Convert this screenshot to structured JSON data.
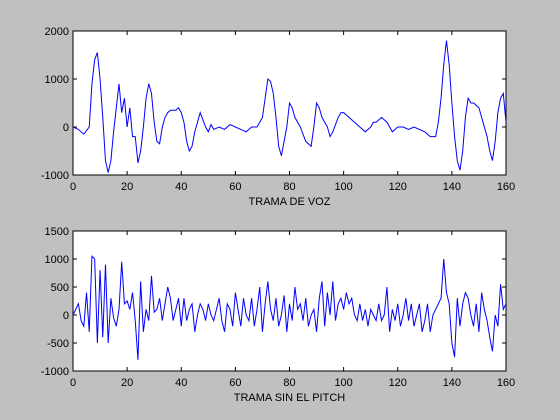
{
  "chart_data": [
    {
      "type": "line",
      "xlabel": "TRAMA DE VOZ",
      "color": "#0000ff",
      "x": [
        0,
        2,
        4,
        6,
        7,
        8,
        9,
        10,
        11,
        12,
        13,
        14,
        15,
        16,
        17,
        18,
        19,
        20,
        21,
        22,
        23,
        24,
        25,
        26,
        27,
        28,
        29,
        30,
        31,
        32,
        33,
        34,
        35,
        36,
        38,
        39,
        40,
        41,
        42,
        43,
        44,
        45,
        46,
        47,
        48,
        49,
        50,
        51,
        52,
        54,
        56,
        58,
        60,
        62,
        64,
        66,
        68,
        70,
        71,
        72,
        73,
        74,
        75,
        76,
        77,
        78,
        79,
        80,
        81,
        82,
        84,
        86,
        88,
        89,
        90,
        91,
        92,
        94,
        95,
        96,
        98,
        99,
        100,
        102,
        104,
        106,
        108,
        110,
        111,
        112,
        114,
        116,
        118,
        120,
        122,
        124,
        126,
        128,
        130,
        132,
        134,
        135,
        136,
        137,
        138,
        139,
        140,
        141,
        142,
        143,
        144,
        145,
        146,
        147,
        148,
        150,
        152,
        153,
        154,
        155,
        156,
        157,
        158,
        159,
        160
      ],
      "values": [
        0,
        -50,
        -150,
        0,
        900,
        1400,
        1550,
        1000,
        200,
        -700,
        -950,
        -700,
        -100,
        400,
        900,
        300,
        600,
        0,
        400,
        -200,
        -200,
        -750,
        -500,
        0,
        600,
        900,
        700,
        100,
        -300,
        -350,
        0,
        200,
        300,
        350,
        350,
        400,
        300,
        100,
        -300,
        -500,
        -400,
        -100,
        100,
        300,
        150,
        0,
        -100,
        50,
        -50,
        0,
        -50,
        50,
        0,
        -50,
        -100,
        0,
        0,
        200,
        600,
        1000,
        950,
        700,
        200,
        -400,
        -600,
        -300,
        0,
        500,
        400,
        200,
        0,
        -300,
        -400,
        0,
        500,
        400,
        200,
        0,
        -200,
        -100,
        200,
        300,
        300,
        200,
        100,
        0,
        -100,
        0,
        100,
        100,
        200,
        100,
        -100,
        0,
        0,
        -50,
        0,
        -50,
        -100,
        -200,
        -200,
        100,
        600,
        1300,
        1800,
        1300,
        500,
        -200,
        -700,
        -900,
        -500,
        200,
        600,
        500,
        500,
        400,
        0,
        -200,
        -500,
        -700,
        -300,
        300,
        600,
        700,
        100
      ],
      "xlim": [
        0,
        160
      ],
      "xticks": [
        0,
        20,
        40,
        60,
        80,
        100,
        120,
        140,
        160
      ],
      "ylim": [
        -1000,
        2000
      ],
      "yticks": [
        -1000,
        0,
        1000,
        2000
      ]
    },
    {
      "type": "line",
      "xlabel": "TRAMA SIN EL PITCH",
      "color": "#0000ff",
      "x": [
        0,
        1,
        2,
        3,
        4,
        5,
        6,
        7,
        8,
        9,
        10,
        11,
        12,
        13,
        14,
        15,
        16,
        17,
        18,
        19,
        20,
        21,
        22,
        23,
        24,
        25,
        26,
        27,
        28,
        29,
        30,
        31,
        32,
        33,
        34,
        35,
        36,
        37,
        38,
        39,
        40,
        41,
        42,
        43,
        44,
        45,
        46,
        47,
        48,
        49,
        50,
        51,
        52,
        53,
        54,
        55,
        56,
        57,
        58,
        59,
        60,
        61,
        62,
        63,
        64,
        65,
        66,
        67,
        68,
        69,
        70,
        71,
        72,
        73,
        74,
        75,
        76,
        77,
        78,
        79,
        80,
        81,
        82,
        83,
        84,
        85,
        86,
        87,
        88,
        89,
        90,
        91,
        92,
        93,
        94,
        95,
        96,
        97,
        98,
        99,
        100,
        101,
        102,
        103,
        104,
        105,
        106,
        107,
        108,
        109,
        110,
        111,
        112,
        113,
        114,
        115,
        116,
        117,
        118,
        119,
        120,
        121,
        122,
        123,
        124,
        125,
        126,
        127,
        128,
        129,
        130,
        131,
        132,
        133,
        134,
        135,
        136,
        137,
        138,
        139,
        140,
        141,
        142,
        143,
        144,
        145,
        146,
        147,
        148,
        149,
        150,
        151,
        152,
        153,
        154,
        155,
        156,
        157,
        158,
        159,
        160
      ],
      "values": [
        0,
        100,
        200,
        -100,
        -200,
        400,
        -300,
        1050,
        1000,
        -500,
        800,
        -400,
        900,
        -500,
        300,
        -50,
        -200,
        100,
        950,
        200,
        250,
        100,
        400,
        -100,
        -800,
        600,
        -300,
        100,
        -100,
        700,
        50,
        100,
        300,
        -100,
        200,
        500,
        300,
        -100,
        100,
        300,
        -200,
        300,
        -100,
        100,
        200,
        -300,
        0,
        200,
        100,
        -100,
        200,
        0,
        -100,
        100,
        300,
        -100,
        -300,
        200,
        100,
        -200,
        400,
        100,
        -200,
        300,
        0,
        -100,
        300,
        -200,
        100,
        500,
        -300,
        200,
        600,
        100,
        -100,
        300,
        -200,
        0,
        350,
        -300,
        200,
        -100,
        500,
        100,
        200,
        -100,
        300,
        -200,
        0,
        100,
        -300,
        300,
        600,
        -200,
        400,
        0,
        600,
        -100,
        200,
        300,
        100,
        400,
        200,
        300,
        0,
        -100,
        200,
        -100,
        100,
        -200,
        100,
        0,
        -100,
        200,
        -100,
        0,
        500,
        -300,
        100,
        -100,
        200,
        -200,
        0,
        300,
        -100,
        200,
        -200,
        0,
        200,
        -300,
        -100,
        200,
        -300,
        0,
        100,
        200,
        300,
        1000,
        400,
        200,
        -500,
        -750,
        300,
        -200,
        200,
        400,
        300,
        0,
        -200,
        200,
        -300,
        400,
        100,
        -100,
        -400,
        -650,
        0,
        -200,
        550,
        100,
        200
      ],
      "xlim": [
        0,
        160
      ],
      "xticks": [
        0,
        20,
        40,
        60,
        80,
        100,
        120,
        140,
        160
      ],
      "ylim": [
        -1000,
        1500
      ],
      "yticks": [
        -1000,
        -500,
        0,
        500,
        1000,
        1500
      ]
    }
  ]
}
